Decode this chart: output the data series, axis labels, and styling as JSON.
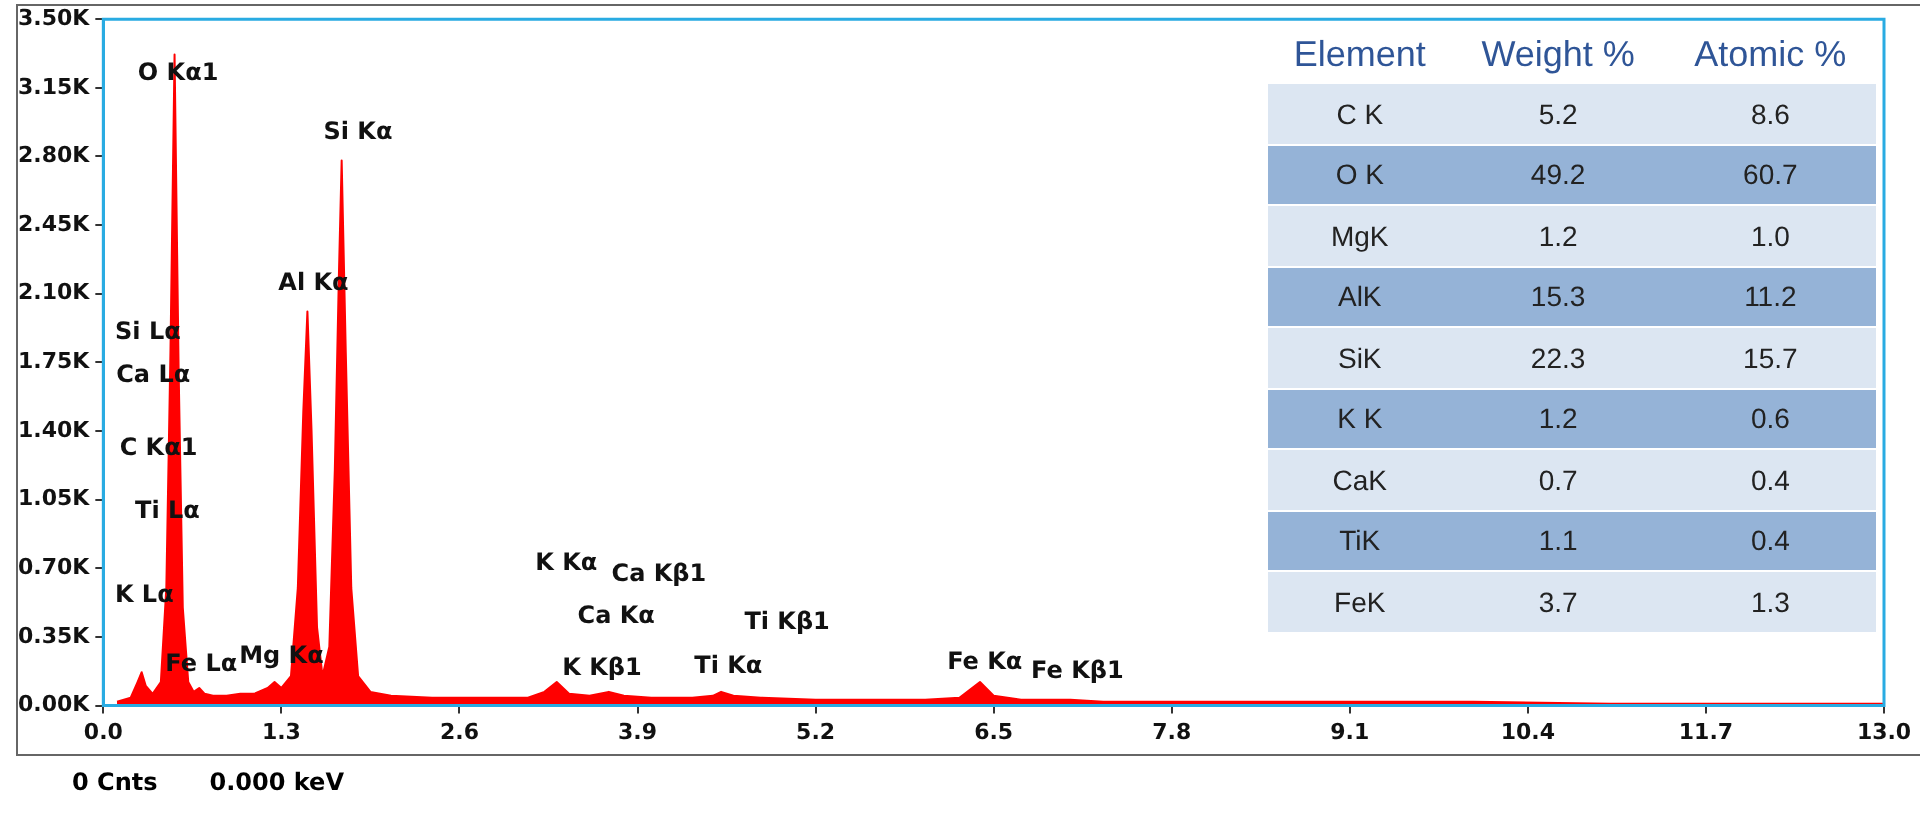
{
  "chart_data": [
    {
      "type": "area",
      "color": "#ff0000",
      "x": [
        0.1,
        0.2,
        0.25,
        0.28,
        0.31,
        0.36,
        0.42,
        0.46,
        0.49,
        0.52,
        0.55,
        0.58,
        0.62,
        0.66,
        0.7,
        0.74,
        0.8,
        0.9,
        1.0,
        1.1,
        1.2,
        1.25,
        1.3,
        1.37,
        1.42,
        1.46,
        1.49,
        1.52,
        1.56,
        1.6,
        1.65,
        1.69,
        1.72,
        1.74,
        1.77,
        1.81,
        1.86,
        1.95,
        2.1,
        2.4,
        2.8,
        3.1,
        3.22,
        3.31,
        3.4,
        3.55,
        3.69,
        3.8,
        4.0,
        4.3,
        4.45,
        4.51,
        4.6,
        4.8,
        5.2,
        5.6,
        6.0,
        6.25,
        6.4,
        6.5,
        6.7,
        7.06,
        7.3,
        8.0,
        9.0,
        10.0,
        11.0,
        12.0,
        13.0
      ],
      "values": [
        20,
        40,
        120,
        170,
        100,
        60,
        120,
        600,
        1800,
        3320,
        1700,
        500,
        120,
        70,
        90,
        60,
        50,
        50,
        60,
        60,
        90,
        120,
        90,
        150,
        600,
        1500,
        2010,
        1400,
        400,
        150,
        300,
        1200,
        2200,
        2780,
        1800,
        600,
        150,
        70,
        50,
        40,
        40,
        40,
        70,
        120,
        60,
        50,
        70,
        50,
        40,
        40,
        50,
        70,
        50,
        40,
        30,
        30,
        30,
        40,
        120,
        50,
        30,
        30,
        20,
        20,
        20,
        20,
        10,
        10,
        10
      ],
      "xlim": [
        0,
        13
      ],
      "xticks": [
        {
          "value": 0,
          "label": "0.0"
        },
        1.3,
        2.6,
        3.9,
        5.2,
        6.5,
        7.8,
        9.1,
        10.4,
        11.7,
        {
          "value": 13,
          "label": "13.0"
        }
      ],
      "ylim": [
        0,
        3500
      ],
      "yticks": [
        {
          "value": 0,
          "label": "0.00K"
        },
        {
          "value": 350,
          "label": "0.35K"
        },
        {
          "value": 700,
          "label": "0.70K"
        },
        {
          "value": 1050,
          "label": "1.05K"
        },
        {
          "value": 1400,
          "label": "1.40K"
        },
        {
          "value": 1750,
          "label": "1.75K"
        },
        {
          "value": 2100,
          "label": "2.10K"
        },
        {
          "value": 2450,
          "label": "2.45K"
        },
        {
          "value": 2800,
          "label": "2.80K"
        },
        {
          "value": 3150,
          "label": "3.15K"
        },
        {
          "value": 3500,
          "label": "3.50K"
        }
      ],
      "legend": false,
      "annotations": [
        "O Kα1",
        "Si Kα",
        "Al Kα",
        "Si Lα",
        "Ca Lα",
        "C Kα1",
        "Ti Lα",
        "K Lα",
        "Fe Lα",
        "Mg Kα",
        "K Kα",
        "Ca Kβ1",
        "Ca Kα",
        "Ti Kβ1",
        "K Kβ1",
        "Ti Kα",
        "Fe Kα",
        "Fe Kβ1",
        "0 Cnts",
        "0.000 keV"
      ]
    },
    {
      "type": "other",
      "xlabel": "Element",
      "categories": [
        "C K",
        "O K",
        "MgK",
        "AlK",
        "SiK",
        "K K",
        "CaK",
        "TiK",
        "FeK"
      ],
      "series": [
        {
          "name": "Weight %",
          "colors": [
            "#dce6f2",
            "#95b3d7",
            "#dce6f2",
            "#95b3d7",
            "#dce6f2",
            "#95b3d7",
            "#dce6f2",
            "#95b3d7",
            "#dce6f2"
          ],
          "values": [
            5.2,
            49.2,
            1.2,
            15.3,
            22.3,
            1.2,
            0.7,
            1.1,
            3.7
          ],
          "value_labels": [
            "5.2",
            "49.2",
            "1.2",
            "15.3",
            "22.3",
            "1.2",
            "0.7",
            "1.1",
            "3.7"
          ]
        },
        {
          "name": "Atomic %",
          "colors": [
            "#dce6f2",
            "#95b3d7",
            "#dce6f2",
            "#95b3d7",
            "#dce6f2",
            "#95b3d7",
            "#dce6f2",
            "#95b3d7",
            "#dce6f2"
          ],
          "values": [
            8.6,
            60.7,
            1.0,
            11.2,
            15.7,
            0.6,
            0.4,
            0.4,
            1.3
          ],
          "value_labels": [
            "8.6",
            "60.7",
            "1.0",
            "11.2",
            "15.7",
            "0.6",
            "0.4",
            "0.4",
            "1.3"
          ]
        }
      ]
    }
  ]
}
